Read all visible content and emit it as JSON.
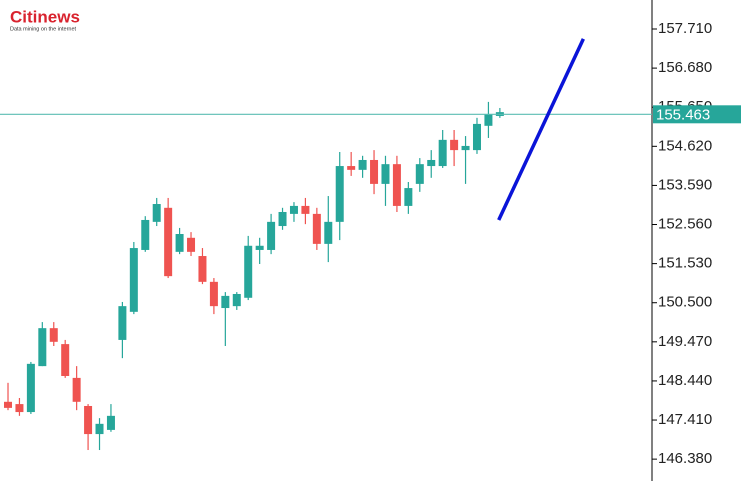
{
  "logo": {
    "brand": "Citinews",
    "tagline": "Data mining on the internet"
  },
  "chart_data": {
    "type": "candlestick",
    "xlim": [
      -0.7,
      56.3
    ],
    "ylim": [
      145.804,
      158.474
    ],
    "yticks": [
      {
        "value": 146.38,
        "label": "146.380"
      },
      {
        "value": 147.41,
        "label": "147.410"
      },
      {
        "value": 148.44,
        "label": "148.440"
      },
      {
        "value": 149.47,
        "label": "149.470"
      },
      {
        "value": 150.5,
        "label": "150.500"
      },
      {
        "value": 151.53,
        "label": "151.530"
      },
      {
        "value": 152.56,
        "label": "152.560"
      },
      {
        "value": 153.59,
        "label": "153.590"
      },
      {
        "value": 154.62,
        "label": "154.620"
      },
      {
        "value": 155.65,
        "label": "155.650"
      },
      {
        "value": 156.68,
        "label": "156.680"
      },
      {
        "value": 157.71,
        "label": "157.710"
      }
    ],
    "up_color": "#26a69a",
    "down_color": "#ef5350",
    "open": [
      147.89,
      147.83,
      147.62,
      148.83,
      149.83,
      149.41,
      148.52,
      147.78,
      147.04,
      147.15,
      149.52,
      150.26,
      151.89,
      152.63,
      153.0,
      151.84,
      152.21,
      151.73,
      151.05,
      150.36,
      150.41,
      150.63,
      151.89,
      151.89,
      152.52,
      152.84,
      153.05,
      152.84,
      152.05,
      152.63,
      154.1,
      154.0,
      154.26,
      153.63,
      154.15,
      153.05,
      153.63,
      154.1,
      154.1,
      154.79,
      154.52,
      154.52,
      155.16,
      155.42
    ],
    "high": [
      148.39,
      147.99,
      148.94,
      149.99,
      149.99,
      149.52,
      148.83,
      147.83,
      147.46,
      147.83,
      150.52,
      152.1,
      152.78,
      153.26,
      153.26,
      152.47,
      152.36,
      151.94,
      151.15,
      150.78,
      150.78,
      152.26,
      152.21,
      152.84,
      153.0,
      153.15,
      153.26,
      153.0,
      153.31,
      154.47,
      154.47,
      154.37,
      154.52,
      154.37,
      154.37,
      153.68,
      154.31,
      154.52,
      155.05,
      155.05,
      154.89,
      155.37,
      155.79,
      155.63
    ],
    "low": [
      147.67,
      147.52,
      147.57,
      148.83,
      149.36,
      148.52,
      147.67,
      146.62,
      146.62,
      147.1,
      149.04,
      150.2,
      151.84,
      152.52,
      151.15,
      151.78,
      151.73,
      150.99,
      150.2,
      149.36,
      150.31,
      150.57,
      151.52,
      151.78,
      152.42,
      152.63,
      152.57,
      151.89,
      151.57,
      152.15,
      153.84,
      153.79,
      153.36,
      153.05,
      152.89,
      152.84,
      153.42,
      153.79,
      154.05,
      154.1,
      153.63,
      154.42,
      154.84,
      155.37
    ],
    "close": [
      147.73,
      147.62,
      148.89,
      149.83,
      149.47,
      148.57,
      147.89,
      147.04,
      147.31,
      147.52,
      150.41,
      151.94,
      152.68,
      153.1,
      151.2,
      152.31,
      151.84,
      151.05,
      150.41,
      150.68,
      150.73,
      152.0,
      152.0,
      152.63,
      152.89,
      153.05,
      152.84,
      152.05,
      152.63,
      154.1,
      154.0,
      154.26,
      153.63,
      154.15,
      153.05,
      153.52,
      154.15,
      154.26,
      154.79,
      154.52,
      154.63,
      155.21,
      155.47,
      155.52
    ],
    "current_price": 155.463,
    "price_line_color": "#5bbdb3",
    "trend_line": {
      "x": [
        42.9,
        50.3
      ],
      "y": [
        152.68,
        157.45
      ],
      "color": "#0a14d8"
    }
  }
}
